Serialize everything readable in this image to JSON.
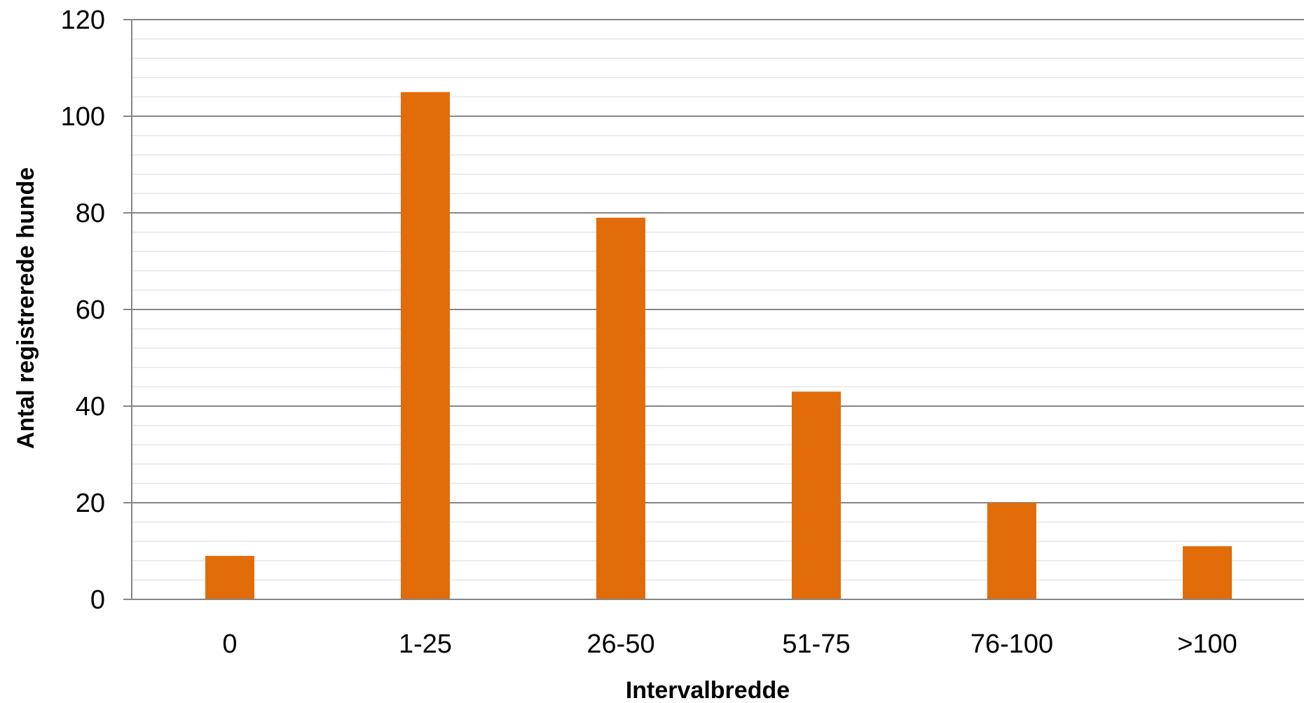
{
  "chart_data": {
    "type": "bar",
    "title": "",
    "xlabel": "Intervalbredde",
    "ylabel": "Antal registrerede hunde",
    "categories": [
      "0",
      "1-25",
      "26-50",
      "51-75",
      "76-100",
      ">100"
    ],
    "values": [
      9,
      105,
      79,
      43,
      20,
      11
    ],
    "ylim": [
      0,
      120
    ],
    "yticks": [
      0,
      20,
      40,
      60,
      80,
      100,
      120
    ],
    "ytick_labels": [
      "0",
      "20",
      "40",
      "60",
      "80",
      "100",
      "120"
    ],
    "grid": true,
    "minor_grid": true,
    "legend": "none",
    "bar_color": "#E36C0A",
    "major_grid_color": "#868686",
    "minor_grid_color": "#E6E6E6"
  }
}
